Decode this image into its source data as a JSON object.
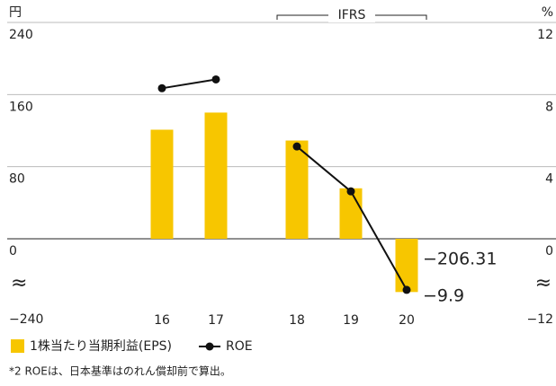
{
  "chart_data": {
    "type": "bar_line",
    "y_unit": "円",
    "y2_unit": "%",
    "categories": [
      "16",
      "17",
      "18",
      "19",
      "20"
    ],
    "series": [
      {
        "name": "1株当たり当期利益(EPS)",
        "type": "bar",
        "color": "#f7c600",
        "values": [
          121,
          140,
          109,
          56,
          -206.31
        ],
        "value_labels": [
          null,
          null,
          null,
          null,
          "−206.31"
        ]
      },
      {
        "name": "ROE",
        "type": "line",
        "axis": "y2",
        "color": "#111111",
        "values": [
          8.35,
          8.84,
          5.12,
          2.63,
          -9.9
        ],
        "value_labels": [
          null,
          null,
          null,
          null,
          "−9.9"
        ]
      }
    ],
    "ylim": [
      -240,
      240
    ],
    "yticks": [
      {
        "value": -240,
        "label": "−240"
      },
      0,
      80,
      160,
      240
    ],
    "y2lim": [
      -12,
      12
    ],
    "y2ticks": [
      {
        "value": -12,
        "label": "−12"
      },
      0,
      4,
      8,
      12
    ],
    "axis_break": true,
    "break_symbol": "≈",
    "bracket": {
      "label": "IFRS",
      "start": 2
    },
    "grid": true,
    "footnote": "*2 ROEは、日本基準はのれん償却前で算出。"
  }
}
